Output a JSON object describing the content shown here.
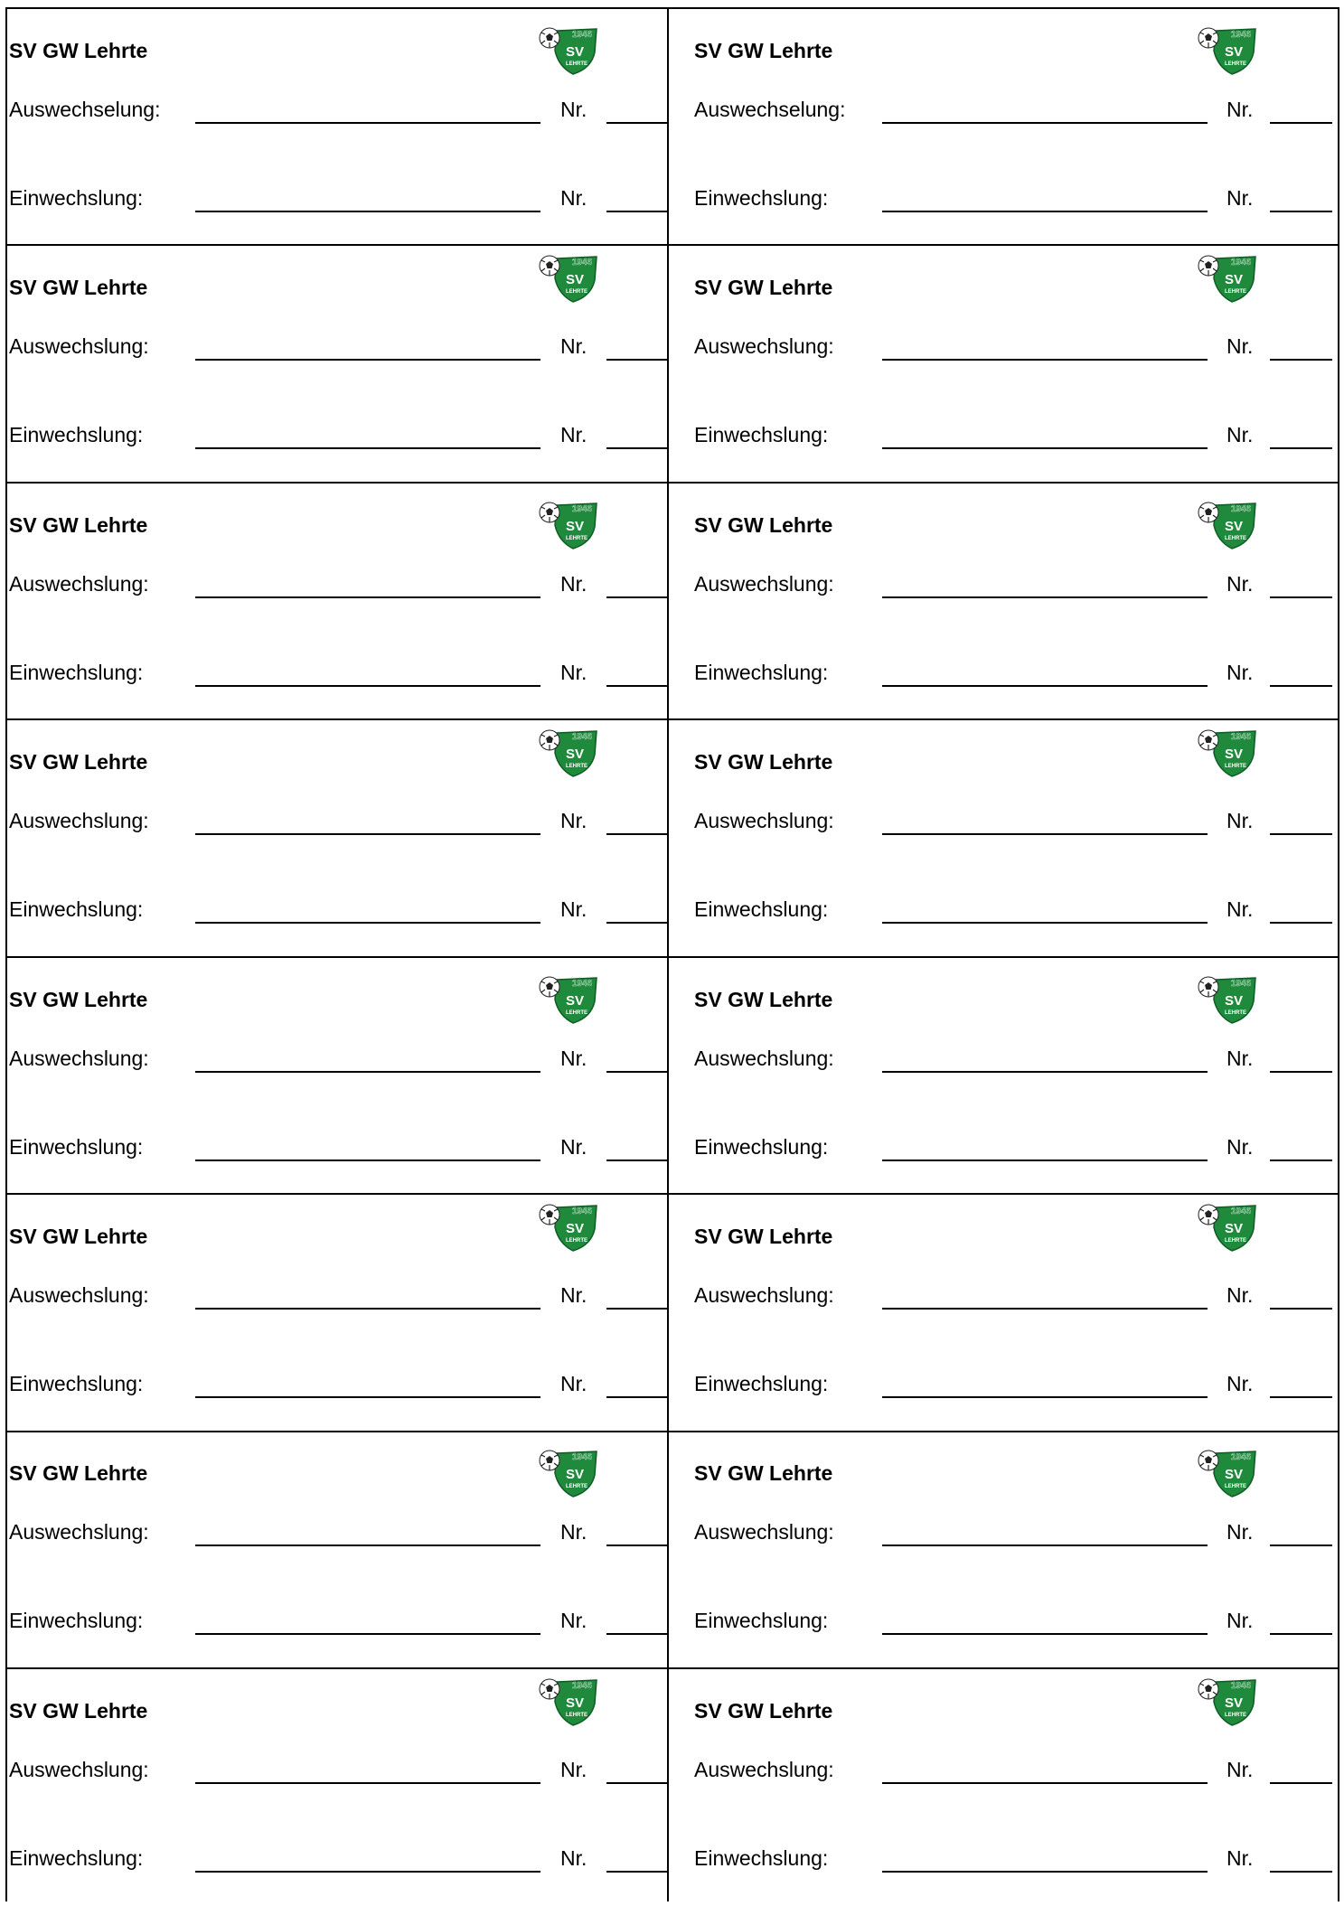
{
  "colors": {
    "club_green": "#1f8a3c",
    "line": "#000000"
  },
  "logo": {
    "icon": "sv-gw-lehrte-crest-icon",
    "year": "1946",
    "initials": "SV",
    "town": "LEHRTE"
  },
  "cards": [
    {
      "title": "SV GW Lehrte",
      "out_label": "Auswechselung:",
      "in_label": "Einwechslung:",
      "nr_label": "Nr."
    },
    {
      "title": "SV GW Lehrte",
      "out_label": "Auswechselung:",
      "in_label": "Einwechslung:",
      "nr_label": "Nr."
    },
    {
      "title": "SV GW Lehrte",
      "out_label": "Auswechslung:",
      "in_label": "Einwechslung:",
      "nr_label": "Nr."
    },
    {
      "title": "SV GW Lehrte",
      "out_label": "Auswechslung:",
      "in_label": "Einwechslung:",
      "nr_label": "Nr."
    },
    {
      "title": "SV GW Lehrte",
      "out_label": "Auswechslung:",
      "in_label": "Einwechslung:",
      "nr_label": "Nr."
    },
    {
      "title": "SV GW Lehrte",
      "out_label": "Auswechslung:",
      "in_label": "Einwechslung:",
      "nr_label": "Nr."
    },
    {
      "title": "SV GW Lehrte",
      "out_label": "Auswechslung:",
      "in_label": "Einwechslung:",
      "nr_label": "Nr."
    },
    {
      "title": "SV GW Lehrte",
      "out_label": "Auswechslung:",
      "in_label": "Einwechslung:",
      "nr_label": "Nr."
    },
    {
      "title": "SV GW Lehrte",
      "out_label": "Auswechslung:",
      "in_label": "Einwechslung:",
      "nr_label": "Nr."
    },
    {
      "title": "SV GW Lehrte",
      "out_label": "Auswechslung:",
      "in_label": "Einwechslung:",
      "nr_label": "Nr."
    },
    {
      "title": "SV GW Lehrte",
      "out_label": "Auswechslung:",
      "in_label": "Einwechslung:",
      "nr_label": "Nr."
    },
    {
      "title": "SV GW Lehrte",
      "out_label": "Auswechslung:",
      "in_label": "Einwechslung:",
      "nr_label": "Nr."
    },
    {
      "title": "SV GW Lehrte",
      "out_label": "Auswechslung:",
      "in_label": "Einwechslung:",
      "nr_label": "Nr."
    },
    {
      "title": "SV GW Lehrte",
      "out_label": "Auswechslung:",
      "in_label": "Einwechslung:",
      "nr_label": "Nr."
    },
    {
      "title": "SV GW Lehrte",
      "out_label": "Auswechslung:",
      "in_label": "Einwechslung:",
      "nr_label": "Nr."
    },
    {
      "title": "SV GW Lehrte",
      "out_label": "Auswechslung:",
      "in_label": "Einwechslung:",
      "nr_label": "Nr."
    }
  ]
}
